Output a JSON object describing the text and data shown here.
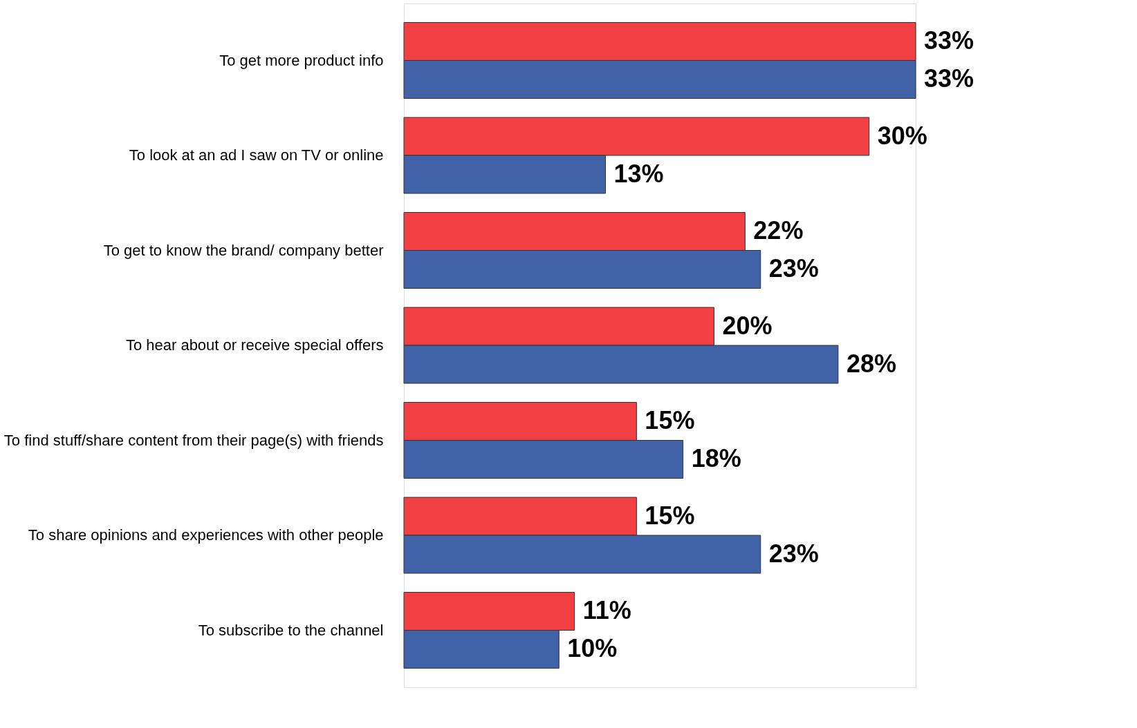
{
  "chart_data": {
    "type": "bar",
    "orientation": "horizontal",
    "categories": [
      "To get more product info",
      "To look at an ad I saw on TV or online",
      "To get to know the brand/ company better",
      "To hear about or receive special offers",
      "To find stuff/share content from their page(s) with friends",
      "To share opinions and experiences with other people",
      "To subscribe to the channel"
    ],
    "series": [
      {
        "color": "#f23f43",
        "values": [
          33,
          30,
          22,
          20,
          15,
          15,
          11
        ],
        "value_labels": [
          "33%",
          "30%",
          "22%",
          "20%",
          "15%",
          "15%",
          "11%"
        ]
      },
      {
        "color": "#4162a6",
        "values": [
          33,
          13,
          23,
          28,
          18,
          23,
          10
        ],
        "value_labels": [
          "33%",
          "13%",
          "23%",
          "28%",
          "18%",
          "23%",
          "10%"
        ]
      }
    ],
    "grid": false,
    "legend": false
  }
}
